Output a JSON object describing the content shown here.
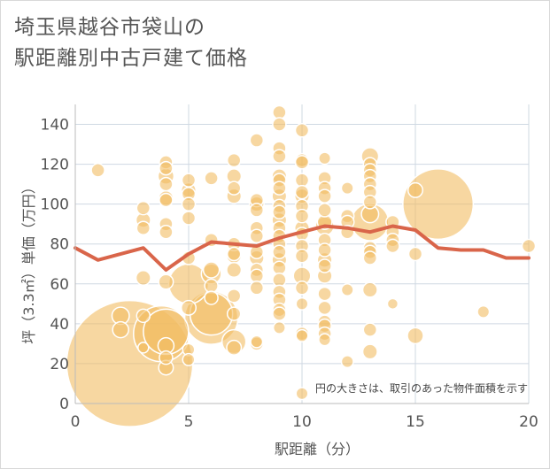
{
  "title": "埼玉県越谷市袋山の\n駅距離別中古戸建て価格",
  "chart_data": {
    "type": "scatter",
    "xlabel": "駅距離（分）",
    "ylabel": "坪（3.3㎡）単価（万円）",
    "xlim": [
      0,
      20
    ],
    "ylim": [
      0,
      150
    ],
    "xticks": [
      0,
      5,
      10,
      15,
      20
    ],
    "yticks": [
      0,
      20,
      40,
      60,
      80,
      100,
      120,
      140
    ],
    "grid": true,
    "note": "円の大きさは、取引のあった物件面積を示す",
    "colors": {
      "bubble": "#f2bd63",
      "line": "#d9654a",
      "grid": "#cfd8e2",
      "axis": "#bbbbbb"
    },
    "line": {
      "x": [
        0,
        1,
        3,
        4,
        5,
        6,
        7,
        8,
        9,
        10,
        11,
        12,
        13,
        14,
        15,
        16,
        17,
        18,
        19,
        20
      ],
      "y": [
        78,
        72,
        78,
        67,
        75,
        81,
        80,
        79,
        83,
        86,
        89,
        88,
        86,
        89,
        87,
        78,
        77,
        77,
        73,
        73
      ]
    },
    "points": [
      {
        "x": 1,
        "y": 117,
        "s": 1
      },
      {
        "x": 2,
        "y": 44,
        "s": 1.3
      },
      {
        "x": 2,
        "y": 37,
        "s": 1.2
      },
      {
        "x": 2.4,
        "y": 20,
        "s": 9.5
      },
      {
        "x": 3,
        "y": 98,
        "s": 1
      },
      {
        "x": 3,
        "y": 92,
        "s": 1.1
      },
      {
        "x": 3,
        "y": 88,
        "s": 1
      },
      {
        "x": 3,
        "y": 63,
        "s": 1.1
      },
      {
        "x": 3,
        "y": 44,
        "s": 1
      },
      {
        "x": 3,
        "y": 28,
        "s": 0.8
      },
      {
        "x": 3.8,
        "y": 35,
        "s": 4.2
      },
      {
        "x": 4,
        "y": 36,
        "s": 3.4
      },
      {
        "x": 4,
        "y": 121,
        "s": 1
      },
      {
        "x": 4,
        "y": 118,
        "s": 1
      },
      {
        "x": 4,
        "y": 114,
        "s": 1.2
      },
      {
        "x": 4,
        "y": 110,
        "s": 1
      },
      {
        "x": 4,
        "y": 103,
        "s": 1.1
      },
      {
        "x": 4,
        "y": 102,
        "s": 1
      },
      {
        "x": 4,
        "y": 90,
        "s": 1
      },
      {
        "x": 4,
        "y": 86,
        "s": 1
      },
      {
        "x": 4,
        "y": 61,
        "s": 1.1
      },
      {
        "x": 4,
        "y": 29,
        "s": 1.2
      },
      {
        "x": 4,
        "y": 23,
        "s": 1
      },
      {
        "x": 4,
        "y": 18,
        "s": 1.1
      },
      {
        "x": 5,
        "y": 112,
        "s": 1
      },
      {
        "x": 5,
        "y": 107,
        "s": 1.1
      },
      {
        "x": 5,
        "y": 105,
        "s": 1
      },
      {
        "x": 5,
        "y": 100,
        "s": 1
      },
      {
        "x": 5,
        "y": 93,
        "s": 1
      },
      {
        "x": 5,
        "y": 73,
        "s": 1
      },
      {
        "x": 5,
        "y": 60,
        "s": 3
      },
      {
        "x": 5,
        "y": 48,
        "s": 1.1
      },
      {
        "x": 5,
        "y": 27,
        "s": 0.9
      },
      {
        "x": 5,
        "y": 22,
        "s": 0.9
      },
      {
        "x": 6,
        "y": 113,
        "s": 1
      },
      {
        "x": 6,
        "y": 82,
        "s": 1
      },
      {
        "x": 6,
        "y": 67,
        "s": 1.2
      },
      {
        "x": 6,
        "y": 65,
        "s": 1.5
      },
      {
        "x": 6,
        "y": 59,
        "s": 1
      },
      {
        "x": 6,
        "y": 53,
        "s": 1
      },
      {
        "x": 6,
        "y": 43,
        "s": 4
      },
      {
        "x": 6,
        "y": 45,
        "s": 3.2
      },
      {
        "x": 7,
        "y": 122,
        "s": 1
      },
      {
        "x": 7,
        "y": 114,
        "s": 1.1
      },
      {
        "x": 7,
        "y": 108,
        "s": 1
      },
      {
        "x": 7,
        "y": 104,
        "s": 1.1
      },
      {
        "x": 7,
        "y": 80,
        "s": 1
      },
      {
        "x": 7,
        "y": 75,
        "s": 1
      },
      {
        "x": 7,
        "y": 74,
        "s": 1.1
      },
      {
        "x": 7,
        "y": 67,
        "s": 1.1
      },
      {
        "x": 7,
        "y": 54,
        "s": 1
      },
      {
        "x": 7,
        "y": 45,
        "s": 1
      },
      {
        "x": 7,
        "y": 31,
        "s": 1.8
      },
      {
        "x": 7,
        "y": 28,
        "s": 1.1
      },
      {
        "x": 8,
        "y": 132,
        "s": 1
      },
      {
        "x": 8,
        "y": 102,
        "s": 1
      },
      {
        "x": 8,
        "y": 100,
        "s": 1.1
      },
      {
        "x": 8,
        "y": 97,
        "s": 1
      },
      {
        "x": 8,
        "y": 88,
        "s": 1
      },
      {
        "x": 8,
        "y": 84,
        "s": 1
      },
      {
        "x": 8,
        "y": 76,
        "s": 1
      },
      {
        "x": 8,
        "y": 73,
        "s": 1.1
      },
      {
        "x": 8,
        "y": 67,
        "s": 1
      },
      {
        "x": 8,
        "y": 64,
        "s": 1
      },
      {
        "x": 8,
        "y": 58,
        "s": 1
      },
      {
        "x": 8,
        "y": 31,
        "s": 0.9
      },
      {
        "x": 8,
        "y": 30,
        "s": 1
      },
      {
        "x": 9,
        "y": 146,
        "s": 1
      },
      {
        "x": 9,
        "y": 140,
        "s": 1
      },
      {
        "x": 9,
        "y": 128,
        "s": 1
      },
      {
        "x": 9,
        "y": 124,
        "s": 1
      },
      {
        "x": 9,
        "y": 114,
        "s": 1.1
      },
      {
        "x": 9,
        "y": 112,
        "s": 1
      },
      {
        "x": 9,
        "y": 108,
        "s": 1
      },
      {
        "x": 9,
        "y": 104,
        "s": 1.1
      },
      {
        "x": 9,
        "y": 99,
        "s": 1
      },
      {
        "x": 9,
        "y": 96,
        "s": 1
      },
      {
        "x": 9,
        "y": 92,
        "s": 1.1
      },
      {
        "x": 9,
        "y": 88,
        "s": 1
      },
      {
        "x": 9,
        "y": 84,
        "s": 1
      },
      {
        "x": 9,
        "y": 80,
        "s": 1
      },
      {
        "x": 9,
        "y": 76,
        "s": 1
      },
      {
        "x": 9,
        "y": 72,
        "s": 1.1
      },
      {
        "x": 9,
        "y": 68,
        "s": 1
      },
      {
        "x": 9,
        "y": 62,
        "s": 1
      },
      {
        "x": 9,
        "y": 56,
        "s": 1
      },
      {
        "x": 9,
        "y": 52,
        "s": 1
      },
      {
        "x": 9,
        "y": 47,
        "s": 1
      },
      {
        "x": 9,
        "y": 45,
        "s": 1
      },
      {
        "x": 9,
        "y": 38,
        "s": 0.9
      },
      {
        "x": 10,
        "y": 137,
        "s": 1
      },
      {
        "x": 10,
        "y": 122,
        "s": 1
      },
      {
        "x": 10,
        "y": 121,
        "s": 1
      },
      {
        "x": 10,
        "y": 112,
        "s": 1
      },
      {
        "x": 10,
        "y": 106,
        "s": 1
      },
      {
        "x": 10,
        "y": 104,
        "s": 1.1
      },
      {
        "x": 10,
        "y": 99,
        "s": 1
      },
      {
        "x": 10,
        "y": 94,
        "s": 1
      },
      {
        "x": 10,
        "y": 88,
        "s": 1.1
      },
      {
        "x": 10,
        "y": 85,
        "s": 1
      },
      {
        "x": 10,
        "y": 79,
        "s": 1
      },
      {
        "x": 10,
        "y": 74,
        "s": 1
      },
      {
        "x": 10,
        "y": 64,
        "s": 1.3
      },
      {
        "x": 10,
        "y": 58,
        "s": 1
      },
      {
        "x": 10,
        "y": 50,
        "s": 0.9
      },
      {
        "x": 10,
        "y": 35,
        "s": 1
      },
      {
        "x": 10,
        "y": 34,
        "s": 0.9
      },
      {
        "x": 10,
        "y": 5,
        "s": 0.9
      },
      {
        "x": 11,
        "y": 123,
        "s": 0.9
      },
      {
        "x": 11,
        "y": 113,
        "s": 1
      },
      {
        "x": 11,
        "y": 108,
        "s": 1
      },
      {
        "x": 11,
        "y": 104,
        "s": 1
      },
      {
        "x": 11,
        "y": 97,
        "s": 1
      },
      {
        "x": 11,
        "y": 91,
        "s": 1.1
      },
      {
        "x": 11,
        "y": 89,
        "s": 1.4
      },
      {
        "x": 11,
        "y": 82,
        "s": 1
      },
      {
        "x": 11,
        "y": 77,
        "s": 1
      },
      {
        "x": 11,
        "y": 72,
        "s": 1.1
      },
      {
        "x": 11,
        "y": 69,
        "s": 1
      },
      {
        "x": 11,
        "y": 64,
        "s": 1.1
      },
      {
        "x": 11,
        "y": 55,
        "s": 1
      },
      {
        "x": 11,
        "y": 48,
        "s": 1
      },
      {
        "x": 11,
        "y": 41,
        "s": 1
      },
      {
        "x": 11,
        "y": 39,
        "s": 1
      },
      {
        "x": 11,
        "y": 35,
        "s": 1
      },
      {
        "x": 11,
        "y": 32,
        "s": 0.9
      },
      {
        "x": 12,
        "y": 108,
        "s": 0.9
      },
      {
        "x": 12,
        "y": 94,
        "s": 1
      },
      {
        "x": 12,
        "y": 91,
        "s": 1
      },
      {
        "x": 12,
        "y": 86,
        "s": 1
      },
      {
        "x": 12,
        "y": 57,
        "s": 0.9
      },
      {
        "x": 12,
        "y": 21,
        "s": 0.9
      },
      {
        "x": 13,
        "y": 124,
        "s": 1.3
      },
      {
        "x": 13,
        "y": 120,
        "s": 1
      },
      {
        "x": 13,
        "y": 117,
        "s": 1
      },
      {
        "x": 13,
        "y": 114,
        "s": 1
      },
      {
        "x": 13,
        "y": 110,
        "s": 1
      },
      {
        "x": 13,
        "y": 106,
        "s": 1
      },
      {
        "x": 13,
        "y": 101,
        "s": 1
      },
      {
        "x": 13,
        "y": 91,
        "s": 2.8
      },
      {
        "x": 13,
        "y": 95,
        "s": 1.3
      },
      {
        "x": 13,
        "y": 78,
        "s": 1
      },
      {
        "x": 13,
        "y": 76,
        "s": 1
      },
      {
        "x": 13,
        "y": 73,
        "s": 1
      },
      {
        "x": 13,
        "y": 57,
        "s": 1.1
      },
      {
        "x": 13,
        "y": 37,
        "s": 1
      },
      {
        "x": 13,
        "y": 26,
        "s": 1.1
      },
      {
        "x": 14,
        "y": 91,
        "s": 1
      },
      {
        "x": 14,
        "y": 86,
        "s": 1
      },
      {
        "x": 14,
        "y": 82,
        "s": 1
      },
      {
        "x": 14,
        "y": 79,
        "s": 1
      },
      {
        "x": 14,
        "y": 50,
        "s": 0.8
      },
      {
        "x": 15,
        "y": 107,
        "s": 1.1
      },
      {
        "x": 15,
        "y": 75,
        "s": 1
      },
      {
        "x": 15,
        "y": 34,
        "s": 1.2
      },
      {
        "x": 16,
        "y": 100,
        "s": 5.3
      },
      {
        "x": 18,
        "y": 46,
        "s": 0.9
      },
      {
        "x": 20,
        "y": 79,
        "s": 1
      }
    ]
  }
}
